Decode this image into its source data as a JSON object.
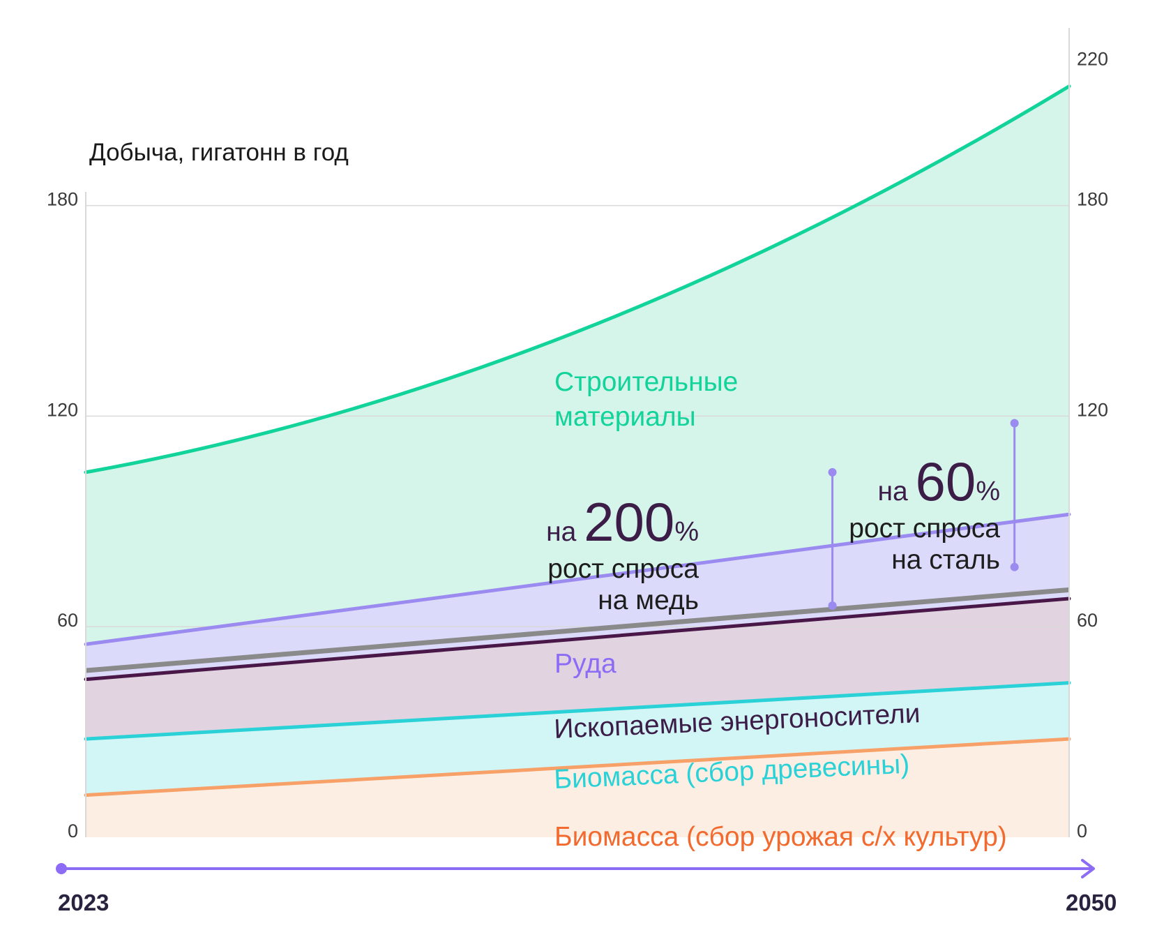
{
  "chart_data": {
    "type": "area",
    "title": "Добыча, гигатонн в год",
    "x": [
      "2023",
      "2050"
    ],
    "x_range": [
      2023,
      2050
    ],
    "ylim": [
      0,
      220
    ],
    "y_ticks_left": [
      0,
      60,
      120,
      180
    ],
    "y_ticks_right": [
      0,
      60,
      120,
      180,
      220
    ],
    "grid": true,
    "stacked_boundaries": [
      {
        "name": "Биомасса (сбор урожая с/х культур)",
        "color": "#f7a068",
        "fill": "#fdeee4",
        "values": [
          12,
          28
        ]
      },
      {
        "name": "Биомасса (сбор древесины)",
        "color": "#2ad1d6",
        "fill": "#d2f5f6",
        "values": [
          28,
          44
        ]
      },
      {
        "name": "Ископаемые энергоносители",
        "color": "#4a1848",
        "fill": "#e2d3e1",
        "values": [
          45,
          68
        ]
      },
      {
        "name": "Руда",
        "color": "#9b8bf0",
        "fill": "#dcdafa",
        "values": [
          55,
          92
        ]
      },
      {
        "name": "Строительные материалы",
        "color": "#12d39a",
        "fill": "#d6f5ea",
        "values": [
          104,
          214
        ]
      }
    ],
    "annotations": [
      {
        "prefix": "на",
        "value": "200%",
        "line1": "рост спроса",
        "line2": "на медь",
        "x": 2043.5,
        "y_from": 66,
        "y_to": 104
      },
      {
        "prefix": "на",
        "value": "60%",
        "line1": "рост спроса",
        "line2": "на сталь",
        "x": 2048.5,
        "y_from": 77,
        "y_to": 118
      }
    ]
  },
  "colors": {
    "axis": "#8c6cf5",
    "grid": "#d9d9d9",
    "gray_band": "#8a8a8a"
  }
}
